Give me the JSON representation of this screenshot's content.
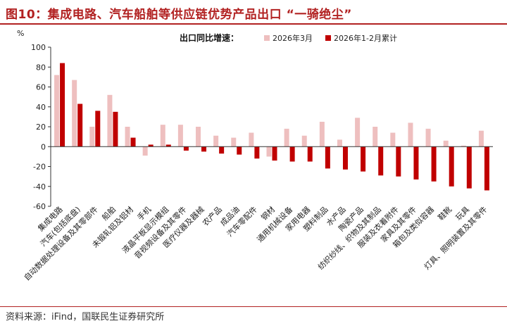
{
  "header": {
    "title": "图10：集成电路、汽车船舶等供应链优势产品出口 “一骑绝尘”"
  },
  "footer": {
    "source": "资料来源：iFind，国联民生证券研究所"
  },
  "colors": {
    "accent": "#b22222",
    "series1": "#eebfbf",
    "series2": "#c00000"
  },
  "chart_data": {
    "type": "bar",
    "title": "",
    "ylabel": "%",
    "xlabel": "",
    "ylim": [
      -60,
      100
    ],
    "yticks": [
      -60,
      -40,
      -20,
      0,
      20,
      40,
      60,
      80,
      100
    ],
    "grid": false,
    "legend": {
      "title": "出口同比增速：",
      "position": "top-right"
    },
    "categories": [
      "集成电路",
      "汽车(包括底盘)",
      "自动数据处理设备及其零部件",
      "船舶",
      "未锻轧铝及铝材",
      "手机",
      "液晶平板显示模组",
      "音视频设备及其零件",
      "医疗仪器及器械",
      "农产品",
      "成品油",
      "汽车零配件",
      "钢材",
      "通用机械设备",
      "家用电器",
      "塑料制品",
      "水产品",
      "陶瓷产品",
      "纺织纱线、织物及其制品",
      "服装及衣着附件",
      "家具及其零件",
      "箱包及类似容器",
      "鞋靴",
      "玩具",
      "灯具、照明装置及其零件"
    ],
    "series": [
      {
        "name": "2026年3月",
        "values": [
          72,
          67,
          20,
          52,
          20,
          -9,
          22,
          22,
          20,
          11,
          9,
          14,
          -10,
          18,
          11,
          25,
          7,
          29,
          20,
          14,
          24,
          18,
          6,
          1,
          16
        ]
      },
      {
        "name": "2026年1-2月累计",
        "values": [
          84,
          43,
          36,
          35,
          9,
          2,
          2,
          -4,
          -5,
          -7,
          -8,
          -12,
          -14,
          -15,
          -15,
          -22,
          -23,
          -25,
          -29,
          -30,
          -33,
          -35,
          -40,
          -42,
          -44
        ]
      }
    ]
  }
}
